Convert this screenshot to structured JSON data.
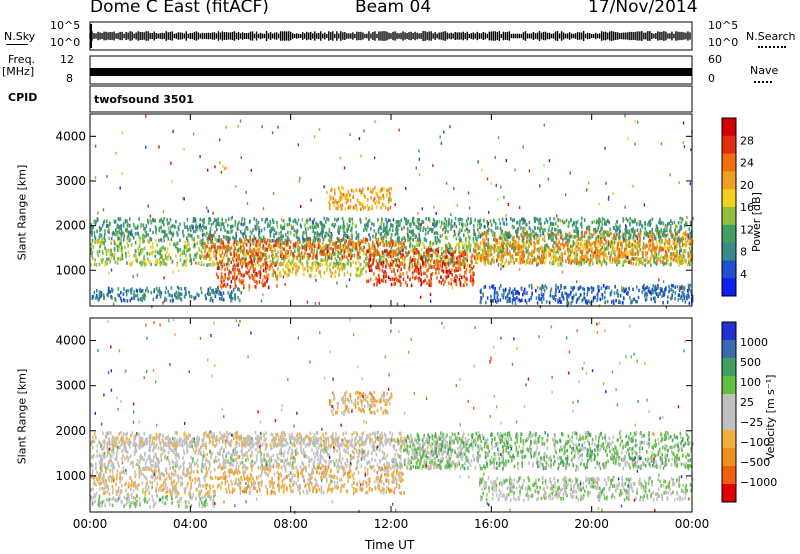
{
  "header": {
    "station": "Dome C East (fitACF)",
    "beam": "Beam 04",
    "date": "17/Nov/2014"
  },
  "strip_panels": {
    "nsky_label": "N.Sky",
    "nsky_ticks": [
      "10^5",
      "10^0"
    ],
    "nsearch_label": "N.Search",
    "nsearch_ticks": [
      "10^5",
      "10^0"
    ],
    "freq_label_line1": "Freq.",
    "freq_label_line2": "[MHz]",
    "freq_ticks": [
      "12",
      "8"
    ],
    "nave_label": "Nave",
    "nave_ticks": [
      "60",
      "0"
    ],
    "cpid_label": "CPID",
    "cpid_value": "twofsound 3501"
  },
  "chart_data": [
    {
      "type": "heatmap",
      "name": "power",
      "ylabel": "Slant Range [km]",
      "ylim": [
        200,
        4500
      ],
      "yticks": [
        1000,
        2000,
        3000,
        4000
      ],
      "x_ticks": [
        "00:00",
        "04:00",
        "08:00",
        "12:00",
        "16:00",
        "20:00",
        "00:00"
      ],
      "xlim_hours": [
        0,
        24
      ],
      "colorbar": {
        "label": "Power [dB]",
        "ticks": [
          "4",
          "8",
          "12",
          "16",
          "20",
          "24",
          "28"
        ],
        "min": 0,
        "max": 32,
        "colors": [
          "#1020f0",
          "#2050d0",
          "#3a8a8a",
          "#40a060",
          "#90c040",
          "#f0d020",
          "#f0a020",
          "#f07010",
          "#e03010",
          "#d00000"
        ]
      },
      "bands": [
        {
          "t0": 0.0,
          "t1": 24.0,
          "r0": 1150,
          "r1": 1700,
          "value": 14
        },
        {
          "t0": 4.5,
          "t1": 12.5,
          "r0": 1300,
          "r1": 1750,
          "value": 24
        },
        {
          "t0": 5.0,
          "t1": 7.5,
          "r0": 650,
          "r1": 1300,
          "value": 26
        },
        {
          "t0": 7.0,
          "t1": 11.0,
          "r0": 900,
          "r1": 1200,
          "value": 18
        },
        {
          "t0": 11.0,
          "t1": 15.3,
          "r0": 700,
          "r1": 1500,
          "value": 26
        },
        {
          "t0": 15.3,
          "t1": 24.0,
          "r0": 1200,
          "r1": 1900,
          "value": 22
        },
        {
          "t0": 0.0,
          "t1": 6.0,
          "r0": 350,
          "r1": 650,
          "value": 8
        },
        {
          "t0": 0.0,
          "t1": 24.0,
          "r0": 1700,
          "r1": 2200,
          "value": 10
        },
        {
          "t0": 9.5,
          "t1": 12.0,
          "r0": 2400,
          "r1": 2900,
          "value": 20
        },
        {
          "t0": 15.5,
          "t1": 24.0,
          "r0": 300,
          "r1": 700,
          "value": 6
        }
      ]
    },
    {
      "type": "heatmap",
      "name": "velocity",
      "ylabel": "Slant Range [km]",
      "ylim": [
        200,
        4500
      ],
      "yticks": [
        1000,
        2000,
        3000,
        4000
      ],
      "x_ticks": [
        "00:00",
        "04:00",
        "08:00",
        "12:00",
        "16:00",
        "20:00",
        "00:00"
      ],
      "xlabel": "Time UT",
      "xlim_hours": [
        0,
        24
      ],
      "colorbar": {
        "label": "Velocity [m s⁻¹]",
        "ticks": [
          "1000",
          "500",
          "100",
          "25",
          "−25",
          "−100",
          "−500",
          "−1000"
        ],
        "min": -1200,
        "max": 1200,
        "colors": [
          "#e00000",
          "#f06010",
          "#f09020",
          "#f0b040",
          "#c0c0c0",
          "#c0c0c0",
          "#60c040",
          "#40a060",
          "#3a6ab0",
          "#2030d0"
        ]
      },
      "bands": [
        {
          "t0": 0.0,
          "t1": 15.0,
          "r0": 1200,
          "r1": 1900,
          "value": 0
        },
        {
          "t0": 0.0,
          "t1": 12.5,
          "r0": 1700,
          "r1": 2000,
          "value": -150
        },
        {
          "t0": 5.0,
          "t1": 12.5,
          "r0": 650,
          "r1": 1250,
          "value": -300
        },
        {
          "t0": 0.0,
          "t1": 5.0,
          "r0": 600,
          "r1": 1200,
          "value": -200
        },
        {
          "t0": 12.5,
          "t1": 24.0,
          "r0": 1200,
          "r1": 2000,
          "value": 300
        },
        {
          "t0": 15.5,
          "t1": 24.0,
          "r0": 500,
          "r1": 1000,
          "value": 150
        },
        {
          "t0": 9.5,
          "t1": 12.0,
          "r0": 2400,
          "r1": 2900,
          "value": -300
        },
        {
          "t0": 0.0,
          "t1": 5.0,
          "r0": 350,
          "r1": 600,
          "value": 200
        }
      ]
    }
  ]
}
